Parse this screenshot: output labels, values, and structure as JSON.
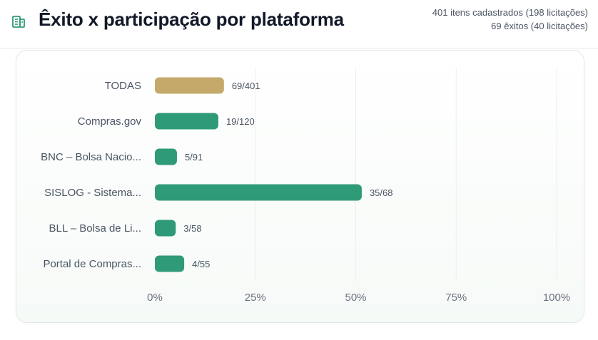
{
  "header": {
    "title": "Êxito x participação por plataforma",
    "icon": "building-icon",
    "stats_line1": "401 itens cadastrados (198 licitações)",
    "stats_line2": "69 êxitos (40 licitações)"
  },
  "colors": {
    "accent": "#2f9a78",
    "highlight": "#c4a96b",
    "icon": "#2f9a78"
  },
  "chart_data": {
    "type": "bar",
    "orientation": "horizontal",
    "categories": [
      "TODAS",
      "Compras.gov",
      "BNC – Bolsa Nacio...",
      "SISLOG - Sistema...",
      "BLL – Bolsa de Li...",
      "Portal de Compras..."
    ],
    "values": [
      17.2,
      15.8,
      5.5,
      51.5,
      5.2,
      7.3
    ],
    "value_labels": [
      "69/401",
      "19/120",
      "5/91",
      "35/68",
      "3/58",
      "4/55"
    ],
    "xlim": [
      0,
      100
    ],
    "x_ticks": [
      "0%",
      "25%",
      "50%",
      "75%",
      "100%"
    ],
    "grid": true
  }
}
